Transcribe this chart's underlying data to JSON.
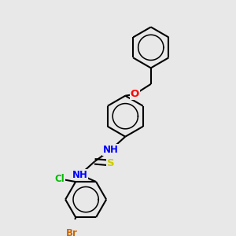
{
  "bg_color": "#e8e8e8",
  "bond_color": "#000000",
  "lw": 1.5,
  "atom_colors": {
    "N": "#0000ff",
    "O": "#ff0000",
    "S": "#cccc00",
    "Cl": "#00bb00",
    "Br": "#cc6600",
    "C": "#000000"
  },
  "fs": 8.5
}
